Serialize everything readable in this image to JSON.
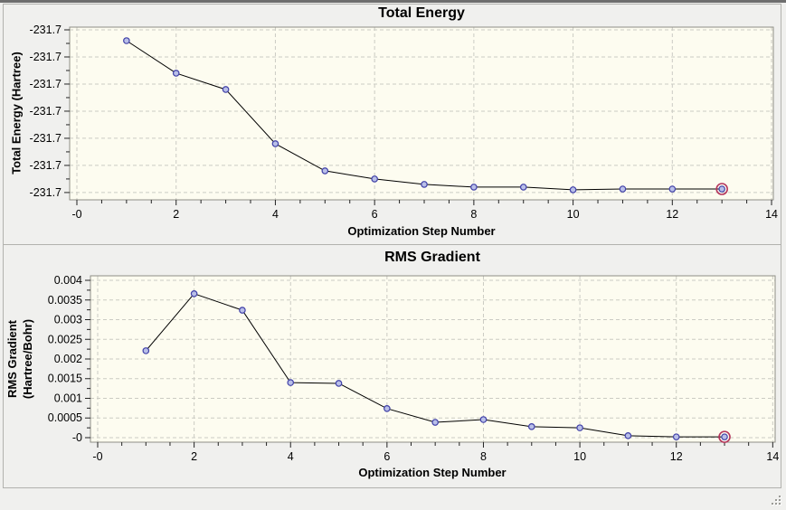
{
  "colors": {
    "window_background": "#f0f0ee",
    "top_strip": "#6e6e6e",
    "panel_border": "#b2b2ae",
    "plot_background": "#fdfcf0",
    "plot_frame": "#8e8e86",
    "gridline": "#cbcbc3",
    "tick": "#222222",
    "series_line": "#000000",
    "marker_fill": "#b9bfe8",
    "marker_stroke": "#4040a8",
    "selected_ring": "#b5365c",
    "text": "#000000"
  },
  "chart_data": [
    {
      "type": "line",
      "title": "Total Energy",
      "xlabel": "Optimization Step Number",
      "ylabel": "Total Energy (Hartree)",
      "x": [
        1,
        2,
        3,
        4,
        5,
        6,
        7,
        8,
        9,
        10,
        11,
        12,
        13
      ],
      "y": [
        -231.664,
        -231.676,
        -231.682,
        -231.702,
        -231.712,
        -231.715,
        -231.717,
        -231.718,
        -231.718,
        -231.719,
        -231.7187,
        -231.7187,
        -231.7187
      ],
      "selected_point_index": 12,
      "xlim": [
        -0.146,
        14.036
      ],
      "ylim": [
        -231.7227,
        -231.659
      ],
      "xticks": {
        "values": [
          0,
          2,
          4,
          6,
          8,
          10,
          12,
          14
        ],
        "labels": [
          "-0",
          "2",
          "4",
          "6",
          "8",
          "10",
          "12",
          "14"
        ],
        "minor_step": 0.5
      },
      "yticks": {
        "values": [
          -231.66,
          -231.67,
          -231.68,
          -231.69,
          -231.7,
          -231.71,
          -231.72
        ],
        "labels": [
          "-231.7",
          "-231.7",
          "-231.7",
          "-231.7",
          "-231.7",
          "-231.7",
          "-231.7"
        ],
        "minor_step": 0.005
      },
      "grid": true,
      "legend": "none"
    },
    {
      "type": "line",
      "title": "RMS Gradient",
      "xlabel": "Optimization Step Number",
      "ylabel": "RMS Gradient\n(Hartree/Bohr)",
      "x": [
        1,
        2,
        3,
        4,
        5,
        6,
        7,
        8,
        9,
        10,
        11,
        12,
        13
      ],
      "y": [
        0.00221,
        0.00366,
        0.00324,
        0.0014,
        0.00138,
        0.00074,
        0.00039,
        0.00046,
        0.00028,
        0.00025,
        5e-05,
        2e-05,
        2e-05
      ],
      "selected_point_index": 12,
      "xlim": [
        -0.15,
        14.05
      ],
      "ylim": [
        -0.000115,
        0.004115
      ],
      "xticks": {
        "values": [
          0,
          2,
          4,
          6,
          8,
          10,
          12,
          14
        ],
        "labels": [
          "-0",
          "2",
          "4",
          "6",
          "8",
          "10",
          "12",
          "14"
        ],
        "minor_step": 0.5
      },
      "yticks": {
        "values": [
          0.004,
          0.0035,
          0.003,
          0.0025,
          0.002,
          0.0015,
          0.001,
          0.0005,
          0
        ],
        "labels": [
          "0.004",
          "0.0035",
          "0.003",
          "0.0025",
          "0.002",
          "0.0015",
          "0.001",
          "0.0005",
          "-0"
        ],
        "minor_step": 0.00025
      },
      "grid": true,
      "legend": "none"
    }
  ]
}
